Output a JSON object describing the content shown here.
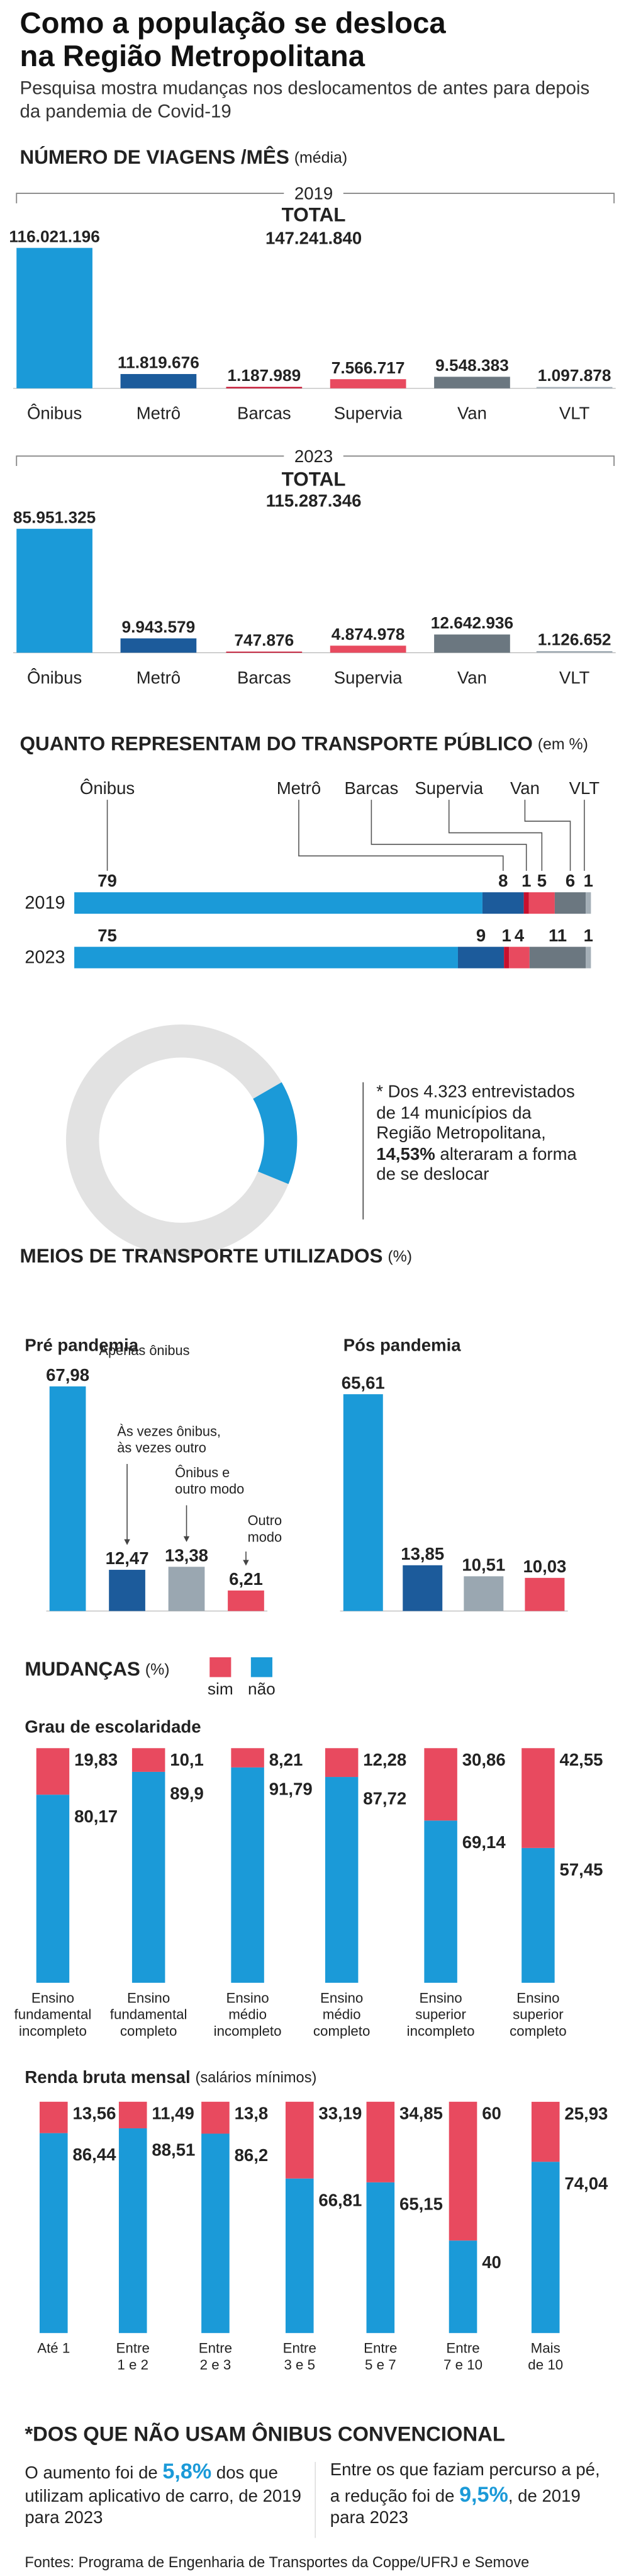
{
  "header": {
    "title": "Como a população se desloca na Região Metropolitana",
    "subtitle": "Pesquisa mostra mudanças nos deslocamentos de antes para depois da pandemia de Covid-19"
  },
  "chart_data": [
    {
      "type": "bar",
      "title": "NÚMERO DE VIAGENS /MÊS",
      "subtitle": "(média)",
      "panel": "2019",
      "total_title": "TOTAL",
      "total": {
        "value": 147241840,
        "label": "147.241.840"
      },
      "categories": [
        "Ônibus",
        "Metrô",
        "Barcas",
        "Supervia",
        "Van",
        "VLT"
      ],
      "values": [
        116021196,
        11819676,
        1187989,
        7566717,
        9548383,
        1097878
      ],
      "value_labels": [
        "116.021.196",
        "11.819.676",
        "1.187.989",
        "7.566.717",
        "9.548.383",
        "1.097.878"
      ],
      "colors": [
        "#1b9ad8",
        "#1c5b9b",
        "#c8102e",
        "#e84a5f",
        "#6b7780",
        "#a4afb7"
      ]
    },
    {
      "type": "bar",
      "panel": "2023",
      "total_title": "TOTAL",
      "total": {
        "value": 115287346,
        "label": "115.287.346"
      },
      "categories": [
        "Ônibus",
        "Metrô",
        "Barcas",
        "Supervia",
        "Van",
        "VLT"
      ],
      "values": [
        85951325,
        9943579,
        747876,
        4874978,
        12642936,
        1126652
      ],
      "value_labels": [
        "85.951.325",
        "9.943.579",
        "747.876",
        "4.874.978",
        "12.642.936",
        "1.126.652"
      ],
      "colors": [
        "#1b9ad8",
        "#1c5b9b",
        "#c8102e",
        "#e84a5f",
        "#6b7780",
        "#a4afb7"
      ]
    },
    {
      "type": "stacked_bar",
      "title": "QUANTO REPRESENTAM DO TRANSPORTE PÚBLICO",
      "subtitle": "(em %)",
      "categories": [
        "2019",
        "2023"
      ],
      "series": [
        {
          "name": "Ônibus",
          "color": "#1b9ad8",
          "values": [
            79,
            75
          ]
        },
        {
          "name": "Metrô",
          "color": "#1c5b9b",
          "values": [
            8,
            9
          ]
        },
        {
          "name": "Barcas",
          "color": "#c8102e",
          "values": [
            1,
            1
          ]
        },
        {
          "name": "Supervia",
          "color": "#e84a5f",
          "values": [
            5,
            4
          ]
        },
        {
          "name": "Van",
          "color": "#6b7780",
          "values": [
            6,
            11
          ]
        },
        {
          "name": "VLT",
          "color": "#a4afb7",
          "values": [
            1,
            1
          ]
        }
      ]
    },
    {
      "type": "donut",
      "values": [
        14.53
      ],
      "value_labels": [
        "14,53%"
      ],
      "color": "#1b9ad8",
      "rest_color": "#e2e2e2",
      "note_before": "* Dos 4.323 entrevistados de 14 municípios da Região Metropolitana,",
      "note_after": "alteraram a forma de se deslocar"
    },
    {
      "type": "bar",
      "title": "MEIOS DE TRANSPORTE UTILIZADOS",
      "subtitle": "(%)",
      "panel": "Pré pandemia",
      "categories": [
        "Apenas ônibus",
        "Às vezes ônibus, às vezes outro",
        "Ônibus e outro modo",
        "Outro modo"
      ],
      "values": [
        67.98,
        12.47,
        13.38,
        6.21
      ],
      "value_labels": [
        "67,98",
        "12,47",
        "13,38",
        "6,21"
      ],
      "colors": [
        "#1b9ad8",
        "#1c5b9b",
        "#9aa7b1",
        "#e84a5f"
      ]
    },
    {
      "type": "bar",
      "panel": "Pós pandemia",
      "values": [
        65.61,
        13.85,
        10.51,
        10.03
      ],
      "value_labels": [
        "65,61",
        "13,85",
        "10,51",
        "10,03"
      ],
      "colors": [
        "#1b9ad8",
        "#1c5b9b",
        "#9aa7b1",
        "#e84a5f"
      ]
    },
    {
      "type": "stacked_column",
      "title": "MUDANÇAS",
      "subtitle": "(%)",
      "legend": [
        {
          "name": "sim",
          "color": "#e84a5f"
        },
        {
          "name": "não",
          "color": "#1b9ad8"
        }
      ],
      "panels": [
        {
          "title": "Grau de escolaridade",
          "categories": [
            "Ensino\nfundamental\nincompleto",
            "Ensino\nfundamental\ncompleto",
            "Ensino\nmédio\nincompleto",
            "Ensino\nmédio\ncompleto",
            "Ensino\nsuperior\nincompleto",
            "Ensino\nsuperior\ncompleto"
          ],
          "series": [
            {
              "values": [
                19.83,
                10.1,
                8.21,
                12.28,
                30.86,
                42.55
              ],
              "value_labels": [
                "19,83",
                "10,1",
                "8,21",
                "12,28",
                "30,86",
                "42,55"
              ]
            },
            {
              "values": [
                80.17,
                89.9,
                91.79,
                87.72,
                69.14,
                57.45
              ],
              "value_labels": [
                "80,17",
                "89,9",
                "91,79",
                "87,72",
                "69,14",
                "57,45"
              ]
            }
          ]
        },
        {
          "title": "Renda bruta mensal",
          "note": "(salários mínimos)",
          "categories": [
            "Até 1",
            "Entre\n1 e 2",
            "Entre\n2 e 3",
            "Entre\n3 e 5",
            "Entre\n5 e 7",
            "Entre\n7 e 10",
            "Mais\nde 10"
          ],
          "series": [
            {
              "values": [
                13.56,
                11.49,
                13.8,
                33.19,
                34.85,
                60,
                25.93
              ],
              "value_labels": [
                "13,56",
                "11,49",
                "13,8",
                "33,19",
                "34,85",
                "60",
                "25,93"
              ]
            },
            {
              "values": [
                86.44,
                88.51,
                86.2,
                66.81,
                65.15,
                40,
                74.04
              ],
              "value_labels": [
                "86,44",
                "88,51",
                "86,2",
                "66,81",
                "65,15",
                "40",
                "74,04"
              ]
            }
          ]
        }
      ]
    }
  ],
  "footnote": {
    "title": "*DOS QUE NÃO USAM ÔNIBUS CONVENCIONAL",
    "items": [
      {
        "before": "O aumento foi de",
        "highlight": "5,8%",
        "after": "dos que utilizam aplicativo de carro, de 2019 para 2023"
      },
      {
        "before": "Entre os que faziam percurso a pé, a redução foi de",
        "highlight": "9,5%",
        "after": ", de 2019 para 2023"
      }
    ]
  },
  "source": "Fontes: Programa de Engenharia de Transportes da Coppe/UFRJ e Semove"
}
